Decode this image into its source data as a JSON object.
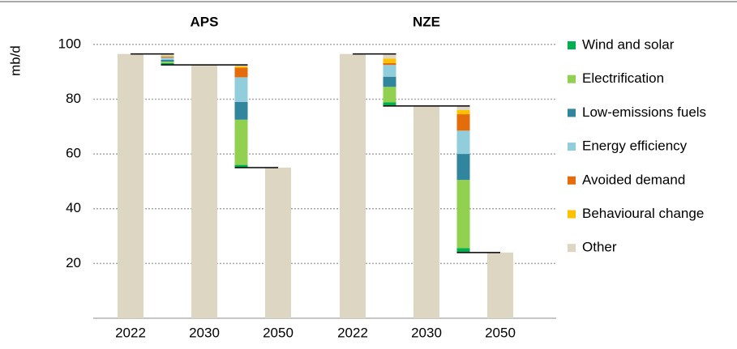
{
  "chart_data": {
    "type": "waterfall",
    "y_label": "mb/d",
    "ylim": [
      0,
      110
    ],
    "yticks": [
      20,
      40,
      60,
      80,
      100
    ],
    "grid": true,
    "legend": "right",
    "total_color": "#ddd6c3",
    "panels": [
      {
        "title": "APS",
        "categories": [
          "2022",
          "2030",
          "2050"
        ],
        "totals": [
          96.5,
          92.5,
          55
        ]
      },
      {
        "title": "NZE",
        "categories": [
          "2022",
          "2030",
          "2050"
        ],
        "totals": [
          96.5,
          77.5,
          24
        ]
      }
    ],
    "series": [
      {
        "name": "Wind and solar",
        "color": "#00b050",
        "values": [
          0.7,
          1,
          1.3,
          1.6
        ]
      },
      {
        "name": "Electrification",
        "color": "#92d050",
        "values": [
          0.5,
          16.5,
          5.7,
          24.9
        ]
      },
      {
        "name": "Low-emissions fuels",
        "color": "#31859c",
        "values": [
          0.7,
          6.5,
          3.7,
          9.5
        ]
      },
      {
        "name": "Energy efficiency",
        "color": "#92cddc",
        "values": [
          0.8,
          9,
          4.3,
          8.5
        ]
      },
      {
        "name": "Avoided demand",
        "color": "#e46c0a",
        "values": [
          0.3,
          3.5,
          0.7,
          6
        ]
      },
      {
        "name": "Behavioural change",
        "color": "#ffc000",
        "values": [
          0.2,
          0.5,
          1.6,
          1.5
        ]
      },
      {
        "name": "Other",
        "color": "#ddd6c3",
        "values": [
          0.8,
          0.5,
          1.7,
          1.5
        ]
      }
    ]
  }
}
